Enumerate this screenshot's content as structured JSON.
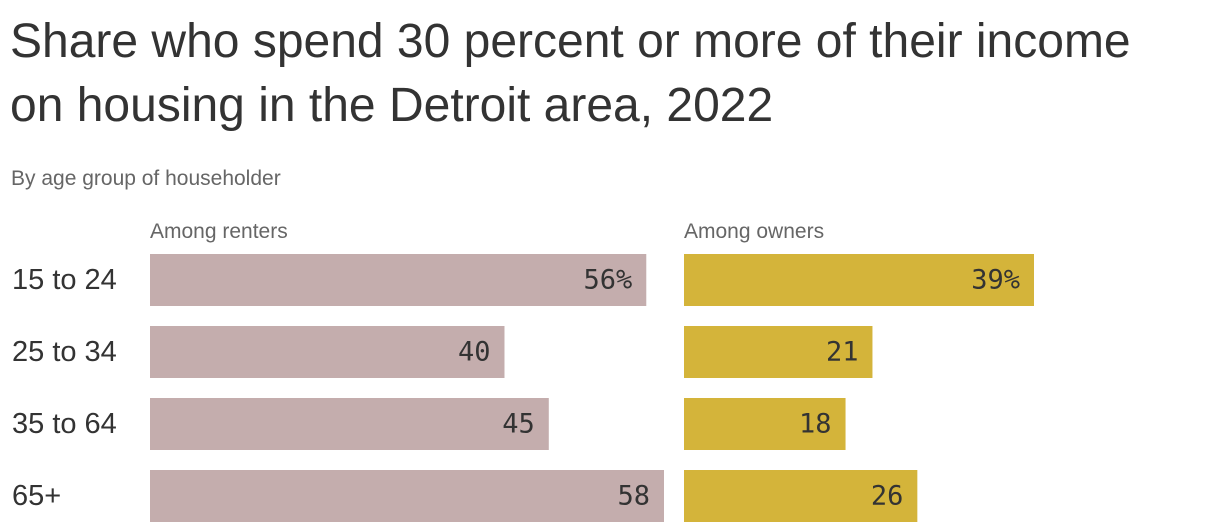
{
  "title": "Share who spend 30 percent or more of their income on housing in the Detroit area, 2022",
  "subtitle": "By age group of householder",
  "colors": {
    "renters": "#c4adad",
    "owners": "#d4b43a"
  },
  "chart_data": {
    "type": "bar",
    "orientation": "horizontal",
    "title": "Share who spend 30 percent or more of their income on housing in the Detroit area, 2022",
    "subtitle": "By age group of householder",
    "categories": [
      "15 to 24",
      "25 to 34",
      "35 to 64",
      "65+"
    ],
    "unit": "%",
    "series": [
      {
        "name": "Among renters",
        "values": [
          56,
          40,
          45,
          58
        ],
        "labels": [
          "56%",
          "40",
          "45",
          "58"
        ]
      },
      {
        "name": "Among owners",
        "values": [
          39,
          21,
          18,
          26
        ],
        "labels": [
          "39%",
          "21",
          "18",
          "26"
        ]
      }
    ],
    "xlim": [
      0,
      58
    ],
    "grid": false,
    "legend": "none"
  }
}
